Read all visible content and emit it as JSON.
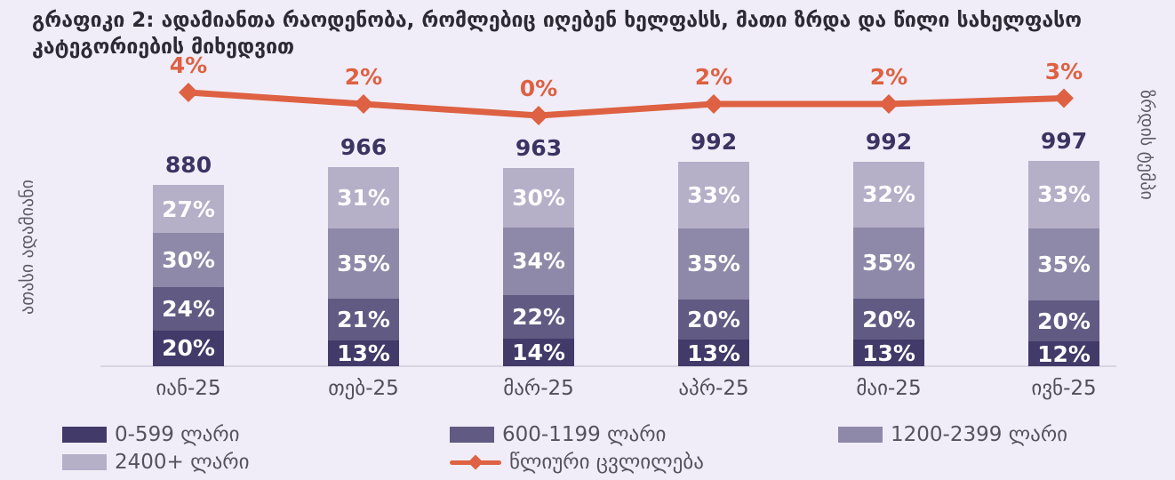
{
  "title": "გრაფიკი 2: ადამიანთა რაოდენობა, რომლებიც იღებენ ხელფასს, მათი ზრდა და წილი სახელფასო კატეგორიების მიხედვით",
  "axes": {
    "left_label": "ათასი ადამიანი",
    "right_label": "ზრდის ტემპი"
  },
  "colors": {
    "background": "#f0edf8",
    "line": "#dd6142",
    "total_label": "#3b3462",
    "axis_line": "#d8d5e2",
    "segment_colors": [
      "#423a68",
      "#615a83",
      "#8f89a9",
      "#b5afc8"
    ]
  },
  "chart_data": {
    "type": "bar",
    "subtype": "stacked-percent-columns-with-growth-line",
    "title": "გრაფიკი 2: ადამიანთა რაოდენობა, რომლებიც იღებენ ხელფასს, მათი ზრდა და წილი სახელფასო კატეგორიების მიხედვით",
    "categories": [
      "იან-25",
      "თებ-25",
      "მარ-25",
      "აპრ-25",
      "მაი-25",
      "ივნ-25"
    ],
    "bar_totals": [
      880,
      966,
      963,
      992,
      992,
      997
    ],
    "series": [
      {
        "name": "0-599 ლარი",
        "color": "#423a68",
        "values_pct": [
          20,
          13,
          14,
          13,
          13,
          12
        ]
      },
      {
        "name": "600-1199 ლარი",
        "color": "#615a83",
        "values_pct": [
          24,
          21,
          22,
          20,
          20,
          20
        ]
      },
      {
        "name": "1200-2399 ლარი",
        "color": "#8f89a9",
        "values_pct": [
          30,
          35,
          34,
          35,
          35,
          35
        ]
      },
      {
        "name": "2400+ ლარი",
        "color": "#b5afc8",
        "values_pct": [
          27,
          31,
          30,
          33,
          32,
          33
        ]
      }
    ],
    "line_series": {
      "name": "წლიური ცვლილება",
      "color": "#dd6142",
      "values_pct": [
        4,
        2,
        0,
        2,
        2,
        3
      ],
      "labels": [
        "4%",
        "2%",
        "0%",
        "2%",
        "2%",
        "3%"
      ]
    },
    "left_axis_label": "ათასი ადამიანი",
    "right_axis_label": "ზრდის ტემპი",
    "gridlines": false,
    "legend_position": "bottom"
  },
  "legend": [
    {
      "label": "0-599 ლარი",
      "type": "swatch",
      "color": "#423a68"
    },
    {
      "label": "600-1199 ლარი",
      "type": "swatch",
      "color": "#615a83"
    },
    {
      "label": "1200-2399 ლარი",
      "type": "swatch",
      "color": "#8f89a9"
    },
    {
      "label": "2400+ ლარი",
      "type": "swatch",
      "color": "#b5afc8"
    },
    {
      "label": "წლიური ცვლილება",
      "type": "line",
      "color": "#dd6142"
    }
  ]
}
